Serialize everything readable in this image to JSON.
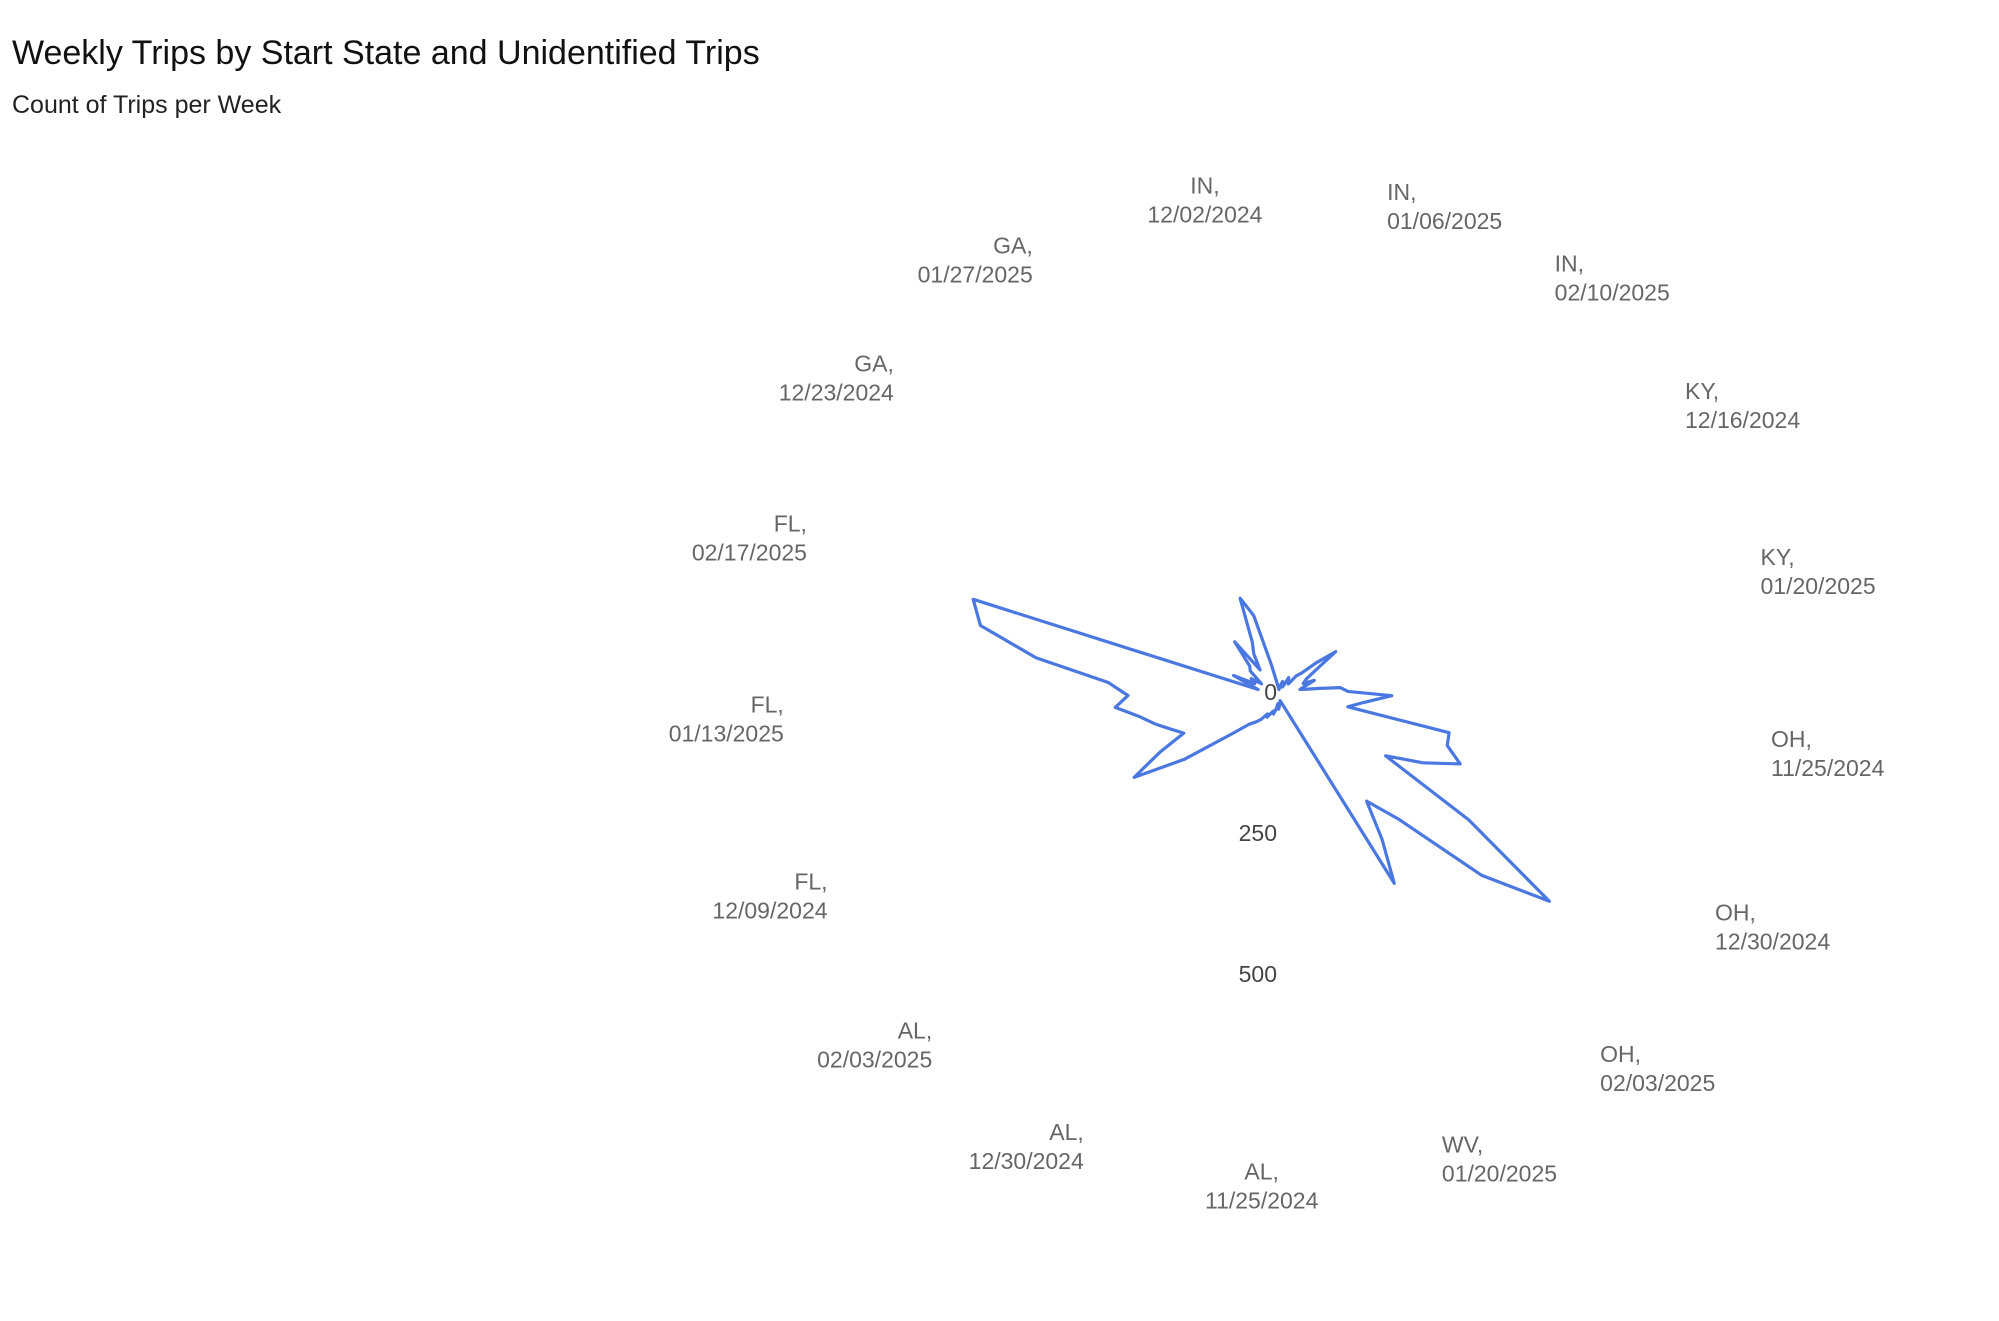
{
  "chart_data": {
    "type": "radar",
    "title": "Weekly Trips by Start State and Unidentified Trips",
    "subtitle": "Count of Trips per Week",
    "categories": [
      [
        "AL,",
        "11/25/2024"
      ],
      null,
      null,
      null,
      null,
      [
        "AL,",
        "12/30/2024"
      ],
      null,
      null,
      null,
      null,
      [
        "AL,",
        "02/03/2025"
      ],
      null,
      null,
      null,
      null,
      [
        "FL,",
        "12/09/2024"
      ],
      null,
      null,
      null,
      null,
      [
        "FL,",
        "01/13/2025"
      ],
      null,
      null,
      null,
      null,
      [
        "FL,",
        "02/17/2025"
      ],
      null,
      null,
      null,
      null,
      [
        "GA,",
        "12/23/2024"
      ],
      null,
      null,
      null,
      null,
      [
        "GA,",
        "01/27/2025"
      ],
      null,
      null,
      null,
      null,
      [
        "IN,",
        "12/02/2024"
      ],
      null,
      null,
      null,
      null,
      [
        "IN,",
        "01/06/2025"
      ],
      null,
      null,
      null,
      null,
      [
        "IN,",
        "02/10/2025"
      ],
      null,
      null,
      null,
      null,
      [
        "KY,",
        "12/16/2024"
      ],
      null,
      null,
      null,
      null,
      [
        "KY,",
        "01/20/2025"
      ],
      null,
      null,
      null,
      null,
      [
        "OH,",
        "11/25/2024"
      ],
      null,
      null,
      null,
      null,
      [
        "OH,",
        "12/30/2024"
      ],
      null,
      null,
      null,
      null,
      [
        "OH,",
        "02/03/2025"
      ],
      null,
      null,
      null,
      null,
      [
        "WV,",
        "01/20/2025"
      ],
      null,
      null,
      null,
      null
    ],
    "series": [
      {
        "name": "Trips",
        "color": "#4a78e0",
        "values": [
          20,
          15,
          10,
          20,
          30,
          25,
          30,
          40,
          35,
          50,
          60,
          70,
          106,
          200,
          293,
          232,
          180,
          200,
          225,
          250,
          291,
          268,
          304,
          437,
          545,
          570,
          40,
          90,
          50,
          60,
          40,
          70,
          77,
          127,
          60,
          90,
          110,
          190,
          153,
          60,
          30,
          20,
          15,
          20,
          25,
          30,
          20,
          25,
          40,
          35,
          30,
          50,
          60,
          90,
          130,
          60,
          50,
          70,
          40,
          50,
          70,
          110,
          123,
          200,
          150,
          123,
          308,
          310,
          342,
          280,
          215,
          400,
          600,
          478,
          301,
          240,
          310,
          387,
          10,
          5,
          5,
          8,
          10,
          10,
          15
        ]
      }
    ],
    "rlim": [
      0,
      800
    ],
    "rticks": [
      0,
      250,
      500
    ]
  }
}
